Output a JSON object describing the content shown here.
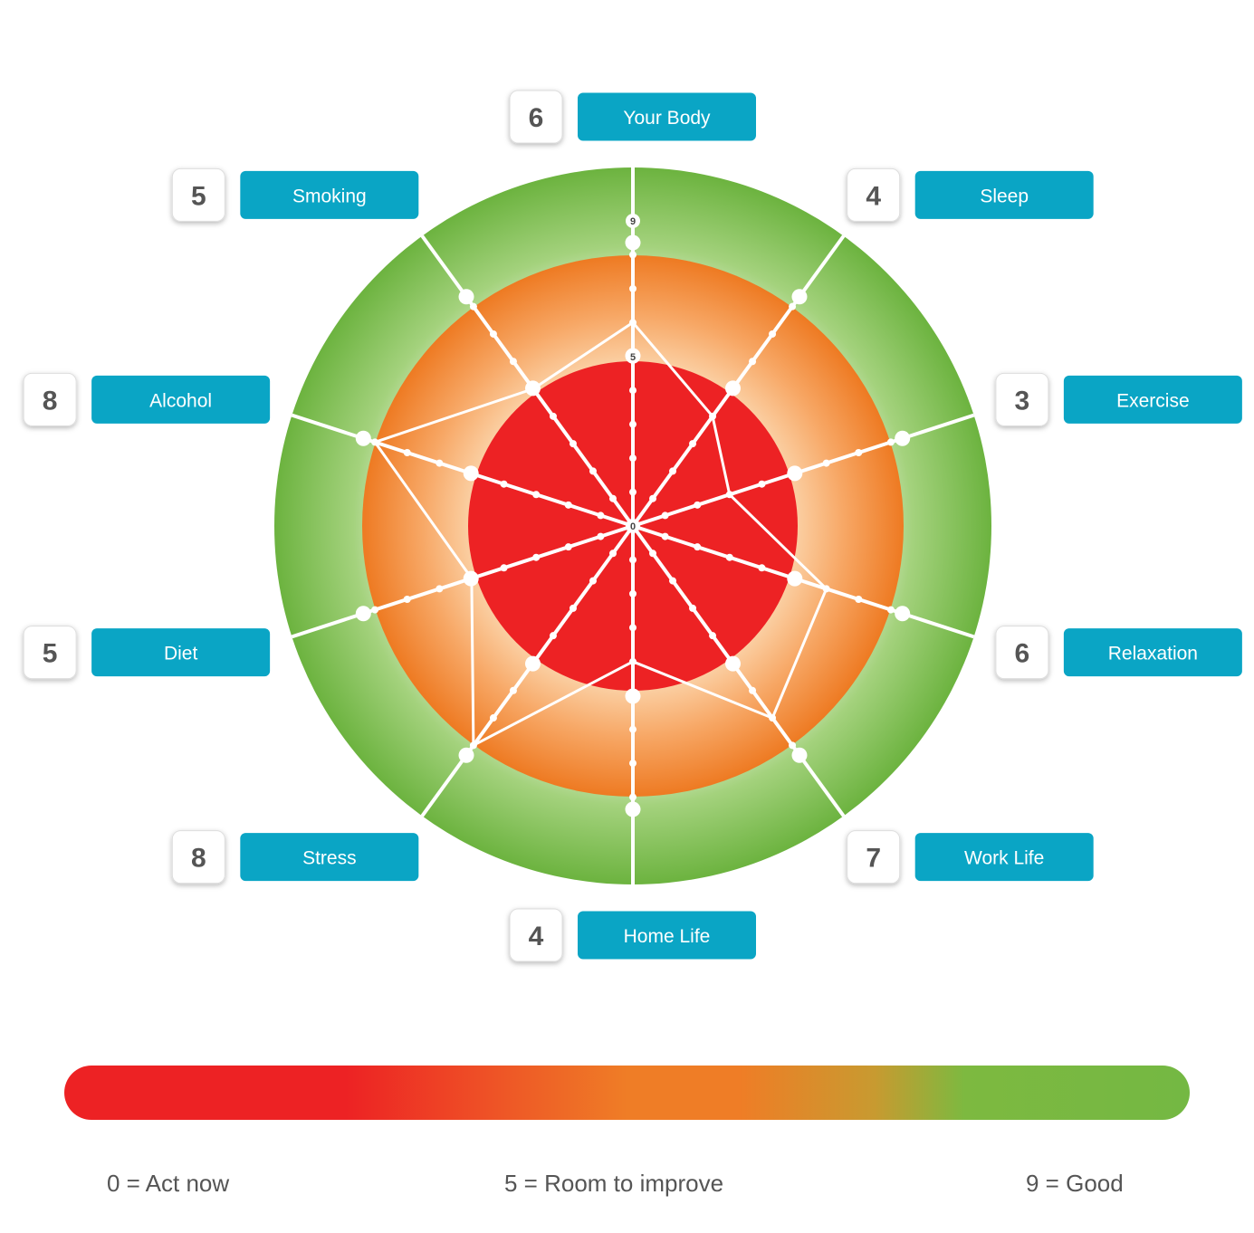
{
  "chart_data": {
    "type": "radar",
    "scale_min": 0,
    "scale_max": 9,
    "center_tick_label": "0",
    "ring_tick_labels": [
      {
        "value": 5,
        "label": "5"
      },
      {
        "value": 9,
        "label": "9"
      }
    ],
    "categories": [
      "Your Body",
      "Sleep",
      "Exercise",
      "Relaxation",
      "Work Life",
      "Home Life",
      "Stress",
      "Diet",
      "Alcohol",
      "Smoking"
    ],
    "values": [
      6,
      4,
      3,
      6,
      7,
      4,
      8,
      5,
      8,
      5
    ],
    "zone_colors": {
      "act_now": "#ed2224",
      "room_to_improve": "#ef7d26",
      "good": "#74b843"
    },
    "label_color": "#0aa5c5",
    "line_color": "#ffffff"
  },
  "legend": {
    "low": "0 = Act now",
    "mid": "5 = Room to improve",
    "high": "9 = Good"
  }
}
